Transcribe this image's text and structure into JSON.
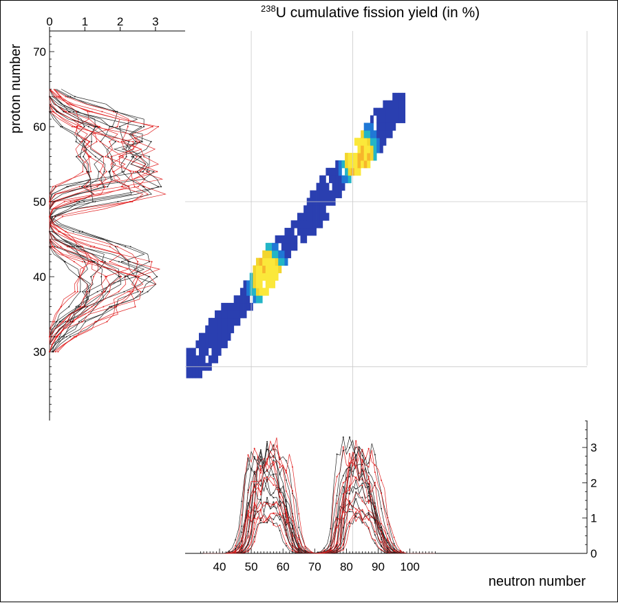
{
  "chart_data": [
    {
      "type": "heatmap",
      "title_sup": "238",
      "title_main": "U cumulative fission yield (in %)",
      "xlabel": "neutron number",
      "ylabel": "proton number",
      "xlim": [
        33,
        110
      ],
      "ylim": [
        21,
        73
      ],
      "grid": {
        "x": [
          50,
          82
        ],
        "y": [
          28,
          50
        ]
      },
      "colors": {
        "low": "#2a3fb0",
        "mid1": "#1f78d6",
        "mid2": "#23b5c6",
        "high1": "#f2d52e",
        "high2": "#f7b62b",
        "peak": "#fbe83a"
      },
      "ridges": [
        {
          "n": [
            32,
            36,
            40,
            44,
            48,
            52,
            56,
            60,
            64,
            68,
            72,
            76,
            80,
            84,
            88,
            92,
            96
          ],
          "z": [
            28.5,
            30.5,
            32.6,
            34.8,
            37.0,
            39.2,
            41.4,
            43.5,
            45.7,
            47.8,
            50.0,
            52.1,
            54.3,
            56.3,
            58.4,
            60.4,
            62.5
          ]
        }
      ],
      "hotspots": [
        {
          "n": 55,
          "z": 40,
          "level": "high"
        },
        {
          "n": 84,
          "z": 56,
          "level": "high"
        }
      ]
    },
    {
      "type": "line",
      "name": "proton projection",
      "xlim": [
        0,
        3.9
      ],
      "xticks": [
        0,
        1,
        2,
        3
      ],
      "yticks": [
        30,
        40,
        50,
        60,
        70
      ],
      "envelope": {
        "z": [
          31,
          33,
          35,
          37,
          39,
          40,
          41,
          42,
          43,
          44,
          45,
          46,
          49,
          50,
          52,
          54,
          55,
          56,
          57,
          58,
          59,
          60,
          62,
          63,
          64
        ],
        "y": [
          0.0,
          0.6,
          1.5,
          2.5,
          3.1,
          3.2,
          3.1,
          2.9,
          2.1,
          1.2,
          0.4,
          0.0,
          0.0,
          0.3,
          3.4,
          3.2,
          3.1,
          3.2,
          2.7,
          2.4,
          3.0,
          2.9,
          1.0,
          0.4,
          0.0
        ]
      }
    },
    {
      "type": "line",
      "name": "neutron projection",
      "xticks": [
        40,
        50,
        60,
        70,
        80,
        90,
        100
      ],
      "yticks": [
        0,
        1,
        2,
        3
      ],
      "ylim": [
        0,
        3.8
      ],
      "envelope": {
        "n": [
          44,
          46,
          48,
          49,
          50,
          52,
          54,
          56,
          58,
          60,
          62,
          64,
          66,
          68,
          70,
          72,
          74,
          76,
          77,
          78,
          80,
          82,
          84,
          86,
          88,
          90,
          92,
          94,
          96
        ],
        "y": [
          0.0,
          0.1,
          0.6,
          1.6,
          2.9,
          3.0,
          3.2,
          3.2,
          3.1,
          2.6,
          1.3,
          0.3,
          0.05,
          0.0,
          0.0,
          0.0,
          0.05,
          0.2,
          0.5,
          2.1,
          3.1,
          3.4,
          3.2,
          3.0,
          2.5,
          1.4,
          0.5,
          0.1,
          0.0
        ]
      }
    }
  ]
}
